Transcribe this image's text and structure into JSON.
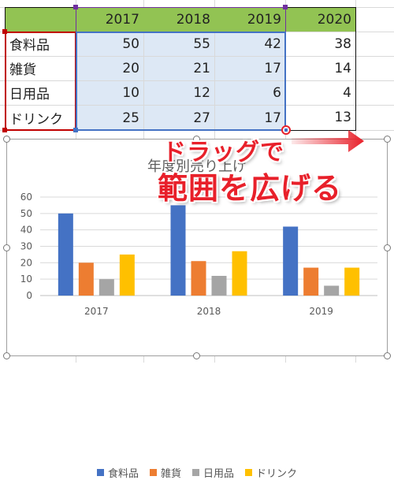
{
  "table": {
    "years": [
      "2017",
      "2018",
      "2019",
      "2020"
    ],
    "rows": [
      {
        "label": "食料品",
        "values": [
          "50",
          "55",
          "42",
          "38"
        ]
      },
      {
        "label": "雑貨",
        "values": [
          "20",
          "21",
          "17",
          "14"
        ]
      },
      {
        "label": "日用品",
        "values": [
          "10",
          "12",
          "6",
          "4"
        ]
      },
      {
        "label": "ドリンク",
        "values": [
          "25",
          "27",
          "17",
          "13"
        ]
      }
    ]
  },
  "callout": {
    "line1": "ドラッグで",
    "line2": "範囲を広げる",
    "color": "#e8202a"
  },
  "colors": {
    "header_fill": "#92c353",
    "selection_fill": "#dde8f5",
    "range_blue": "#4472c4",
    "range_red": "#c00000",
    "range_purple": "#7030a0"
  },
  "chart_data": {
    "type": "bar",
    "title": "年度別売り上げ",
    "categories": [
      "2017",
      "2018",
      "2019"
    ],
    "series": [
      {
        "name": "食料品",
        "values": [
          50,
          55,
          42
        ],
        "color": "#4472c4"
      },
      {
        "name": "雑貨",
        "values": [
          20,
          21,
          17
        ],
        "color": "#ed7d31"
      },
      {
        "name": "日用品",
        "values": [
          10,
          12,
          6
        ],
        "color": "#a5a5a5"
      },
      {
        "name": "ドリンク",
        "values": [
          25,
          27,
          17
        ],
        "color": "#ffc000"
      }
    ],
    "yticks": [
      "0",
      "10",
      "20",
      "30",
      "40",
      "50",
      "60"
    ],
    "ylim": [
      0,
      60
    ],
    "grid": true,
    "legend": "bottom"
  }
}
